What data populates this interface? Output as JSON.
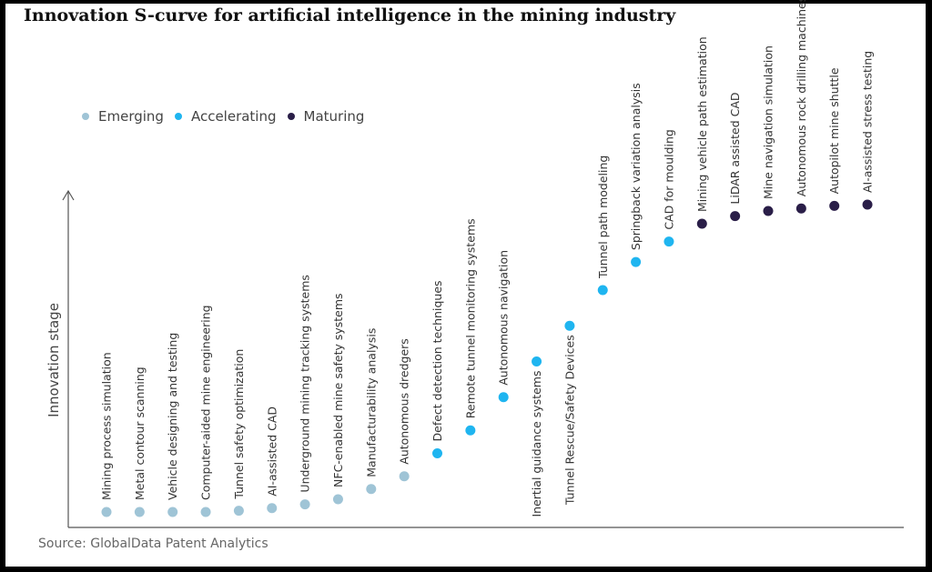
{
  "chart_data": {
    "type": "scatter",
    "title": "Innovation S-curve for artificial intelligence in the mining industry",
    "ylabel": "Innovation stage",
    "source": "Source: GlobalData Patent Analytics",
    "legend_position": "top-left",
    "stages": [
      {
        "name": "Emerging",
        "color": "#9fc4d6"
      },
      {
        "name": "Accelerating",
        "color": "#1fb5f0"
      },
      {
        "name": "Maturing",
        "color": "#2a1e48"
      }
    ],
    "points": [
      {
        "label": "Mining process simulation",
        "stage": "Emerging",
        "level": 0.0
      },
      {
        "label": "Metal contour scanning",
        "stage": "Emerging",
        "level": 0.0
      },
      {
        "label": "Vehicle designing and testing",
        "stage": "Emerging",
        "level": 0.0
      },
      {
        "label": "Computer-aided mine engineering",
        "stage": "Emerging",
        "level": 0.0
      },
      {
        "label": "Tunnel safety optimization",
        "stage": "Emerging",
        "level": 0.5
      },
      {
        "label": "AI-assisted CAD",
        "stage": "Emerging",
        "level": 1.5
      },
      {
        "label": "Underground mining tracking systems",
        "stage": "Emerging",
        "level": 3
      },
      {
        "label": "NFC-enabled mine safety systems",
        "stage": "Emerging",
        "level": 5
      },
      {
        "label": "Manufacturability analysis",
        "stage": "Emerging",
        "level": 9
      },
      {
        "label": "Autonomous dredgers",
        "stage": "Emerging",
        "level": 14
      },
      {
        "label": "Defect detection techniques",
        "stage": "Accelerating",
        "level": 23
      },
      {
        "label": "Remote tunnel monitoring systems",
        "stage": "Accelerating",
        "level": 32
      },
      {
        "label": "Autonomous navigation",
        "stage": "Accelerating",
        "level": 45
      },
      {
        "label": "Inertial guidance systems",
        "stage": "Accelerating",
        "level": 59
      },
      {
        "label": "Tunnel Rescue/Safety Devices",
        "stage": "Accelerating",
        "level": 73
      },
      {
        "label": "Tunnel path modeling",
        "stage": "Accelerating",
        "level": 87
      },
      {
        "label": "Springback variation analysis",
        "stage": "Accelerating",
        "level": 98
      },
      {
        "label": "CAD for moulding",
        "stage": "Accelerating",
        "level": 106
      },
      {
        "label": "Mining vehicle path estimation",
        "stage": "Maturing",
        "level": 113
      },
      {
        "label": "LiDAR assisted CAD",
        "stage": "Maturing",
        "level": 116
      },
      {
        "label": "Mine navigation simulation",
        "stage": "Maturing",
        "level": 118
      },
      {
        "label": "Autonomous rock drilling machines",
        "stage": "Maturing",
        "level": 119
      },
      {
        "label": "Autopilot mine shuttle",
        "stage": "Maturing",
        "level": 120
      },
      {
        "label": "AI-assisted stress testing",
        "stage": "Maturing",
        "level": 120.5
      }
    ],
    "ylim": [
      0,
      120.5
    ],
    "grid": false
  }
}
